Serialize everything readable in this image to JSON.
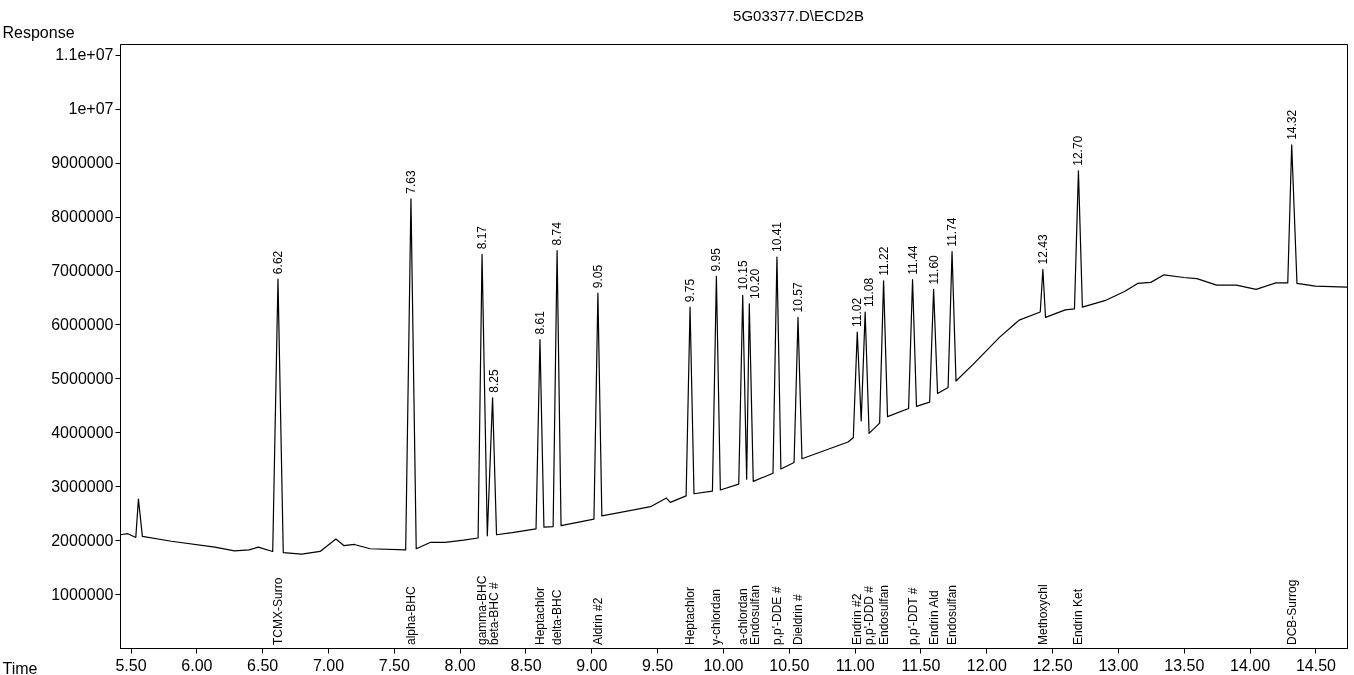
{
  "chart_data": {
    "type": "line",
    "title": "5G03377.D\\ECD2B",
    "xlabel": "Time",
    "ylabel": "Response",
    "color": "#000000",
    "xlim": [
      5.42,
      14.74
    ],
    "ylim": [
      0,
      11200000
    ],
    "xticks": [
      {
        "value": 5.5,
        "label": "5.50"
      },
      {
        "value": 6,
        "label": "6.00"
      },
      {
        "value": 6.5,
        "label": "6.50"
      },
      {
        "value": 7,
        "label": "7.00"
      },
      {
        "value": 7.5,
        "label": "7.50"
      },
      {
        "value": 8,
        "label": "8.00"
      },
      {
        "value": 8.5,
        "label": "8.50"
      },
      {
        "value": 9,
        "label": "9.00"
      },
      {
        "value": 9.5,
        "label": "9.50"
      },
      {
        "value": 10,
        "label": "10.00"
      },
      {
        "value": 10.5,
        "label": "10.50"
      },
      {
        "value": 11,
        "label": "11.00"
      },
      {
        "value": 11.5,
        "label": "11.50"
      },
      {
        "value": 12,
        "label": "12.00"
      },
      {
        "value": 12.5,
        "label": "12.50"
      },
      {
        "value": 13,
        "label": "13.00"
      },
      {
        "value": 13.5,
        "label": "13.50"
      },
      {
        "value": 14,
        "label": "14.00"
      },
      {
        "value": 14.5,
        "label": "14.50"
      }
    ],
    "yticks": [
      1000000,
      2000000,
      3000000,
      4000000,
      5000000,
      6000000,
      7000000,
      8000000,
      9000000,
      {
        "value": 10000000,
        "label": "1e+07"
      },
      {
        "value": 11000000,
        "label": "1.1e+07"
      }
    ],
    "x": [
      5.42,
      5.48,
      5.54,
      5.56,
      5.59,
      5.81,
      6.14,
      6.29,
      6.4,
      6.47,
      6.58,
      6.62,
      6.66,
      6.8,
      6.94,
      7.06,
      7.12,
      7.2,
      7.32,
      7.59,
      7.63,
      7.67,
      7.78,
      7.89,
      8.03,
      8.14,
      8.17,
      8.21,
      8.25,
      8.28,
      8.4,
      8.58,
      8.61,
      8.64,
      8.71,
      8.74,
      8.77,
      9.02,
      9.05,
      9.08,
      9.45,
      9.57,
      9.6,
      9.72,
      9.75,
      9.78,
      9.92,
      9.95,
      9.98,
      10.12,
      10.15,
      10.18,
      10.2,
      10.23,
      10.38,
      10.41,
      10.44,
      10.54,
      10.57,
      10.6,
      10.95,
      10.99,
      11.02,
      11.05,
      11.08,
      11.11,
      11.19,
      11.22,
      11.25,
      11.41,
      11.44,
      11.47,
      11.57,
      11.6,
      11.63,
      11.71,
      11.74,
      11.77,
      11.9,
      12.1,
      12.25,
      12.41,
      12.43,
      12.45,
      12.6,
      12.67,
      12.7,
      12.73,
      12.9,
      13.05,
      13.15,
      13.25,
      13.35,
      13.5,
      13.6,
      13.75,
      13.9,
      14.05,
      14.2,
      14.29,
      14.32,
      14.36,
      14.5,
      14.74
    ],
    "values": [
      2100000,
      2120000,
      2050000,
      2760000,
      2070000,
      1980000,
      1870000,
      1800000,
      1820000,
      1870000,
      1790000,
      6840000,
      1770000,
      1740000,
      1790000,
      2020000,
      1900000,
      1920000,
      1840000,
      1820000,
      8330000,
      1840000,
      1960000,
      1960000,
      2000000,
      2040000,
      7300000,
      2080000,
      4640000,
      2100000,
      2140000,
      2210000,
      5720000,
      2240000,
      2250000,
      7370000,
      2270000,
      2390000,
      6580000,
      2450000,
      2620000,
      2780000,
      2700000,
      2820000,
      6320000,
      2860000,
      2910000,
      6890000,
      2930000,
      3040000,
      6540000,
      3130000,
      6380000,
      3090000,
      3240000,
      7250000,
      3320000,
      3440000,
      6130000,
      3510000,
      3820000,
      3900000,
      5860000,
      4210000,
      6230000,
      3980000,
      4170000,
      6810000,
      4290000,
      4440000,
      6830000,
      4480000,
      4560000,
      6650000,
      4720000,
      4830000,
      7350000,
      4950000,
      5260000,
      5760000,
      6080000,
      6230000,
      7020000,
      6130000,
      6270000,
      6290000,
      8850000,
      6320000,
      6440000,
      6610000,
      6760000,
      6780000,
      6920000,
      6870000,
      6850000,
      6730000,
      6730000,
      6650000,
      6770000,
      6770000,
      9330000,
      6760000,
      6710000,
      6690000
    ],
    "annotations": [
      {
        "text": "6.62",
        "x": 6.62,
        "y": 6840000
      },
      {
        "text": "7.63",
        "x": 7.63,
        "y": 8330000
      },
      {
        "text": "8.17",
        "x": 8.17,
        "y": 7300000
      },
      {
        "text": "8.25",
        "x": 8.25,
        "y": 4640000
      },
      {
        "text": "8.61",
        "x": 8.61,
        "y": 5720000
      },
      {
        "text": "8.74",
        "x": 8.74,
        "y": 7370000
      },
      {
        "text": "9.05",
        "x": 9.05,
        "y": 6580000
      },
      {
        "text": "9.75",
        "x": 9.75,
        "y": 6320000
      },
      {
        "text": "9.95",
        "x": 9.95,
        "y": 6890000
      },
      {
        "text": "10.15",
        "x": 10.15,
        "y": 6540000
      },
      {
        "text": "10.20",
        "x": 10.2,
        "y": 6380000
      },
      {
        "text": "10.41",
        "x": 10.41,
        "y": 7250000
      },
      {
        "text": "10.57",
        "x": 10.57,
        "y": 6130000
      },
      {
        "text": "11.02",
        "x": 11.02,
        "y": 5860000
      },
      {
        "text": "11.08",
        "x": 11.08,
        "y": 6230000
      },
      {
        "text": "11.22",
        "x": 11.22,
        "y": 6810000
      },
      {
        "text": "11.44",
        "x": 11.44,
        "y": 6830000
      },
      {
        "text": "11.60",
        "x": 11.6,
        "y": 6650000
      },
      {
        "text": "11.74",
        "x": 11.74,
        "y": 7350000
      },
      {
        "text": "12.43",
        "x": 12.43,
        "y": 7020000
      },
      {
        "text": "12.70",
        "x": 12.7,
        "y": 8850000
      },
      {
        "text": "14.32",
        "x": 14.32,
        "y": 9330000
      },
      "TCMX-Surro",
      "alpha-BHC",
      "gamma-BHC",
      "beta-BHC #",
      "Heptachlor",
      "delta-BHC",
      "Aldrin #2",
      "Heptachlor",
      "y-chlordan",
      "a-chlordan",
      "Endosulfan",
      "p,p'-DDE #",
      "Dieldrin #",
      "Endrin #2",
      "p,p'-DDD #",
      "Endosulfan",
      "p,p'-DDT #",
      "Endrin Ald",
      "Endosulfan",
      "Methoxychl",
      "Endrin Ket",
      "DCB-Surrog"
    ]
  }
}
